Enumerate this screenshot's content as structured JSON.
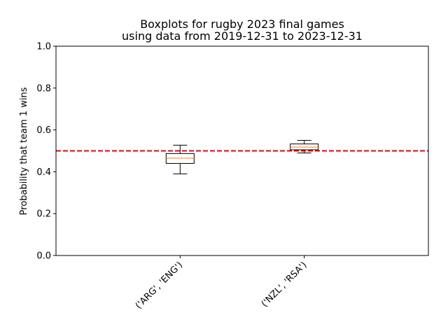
{
  "chart_data": {
    "type": "boxplot",
    "title": "Boxplots for rugby 2023 final games",
    "subtitle": "using data from 2019-12-31 to 2023-12-31",
    "xlabel": "",
    "ylabel": "Probability that team 1 wins",
    "ylim": [
      0.0,
      1.0
    ],
    "yticks": [
      "0.0",
      "0.2",
      "0.4",
      "0.6",
      "0.8",
      "1.0"
    ],
    "grid": false,
    "categories": [
      "('ARG', 'ENG')",
      "('NZL', 'RSA')"
    ],
    "boxes": [
      {
        "whisker_low": 0.39,
        "q1": 0.44,
        "median": 0.465,
        "q3": 0.487,
        "whisker_high": 0.527
      },
      {
        "whisker_low": 0.49,
        "q1": 0.505,
        "median": 0.518,
        "q3": 0.533,
        "whisker_high": 0.55
      }
    ],
    "reference_line": {
      "y": 0.5,
      "style": "dashed",
      "color": "#e8000b"
    },
    "colors": {
      "box": "#000000",
      "median": "#ff7f0e",
      "reference": "#e8000b"
    }
  }
}
